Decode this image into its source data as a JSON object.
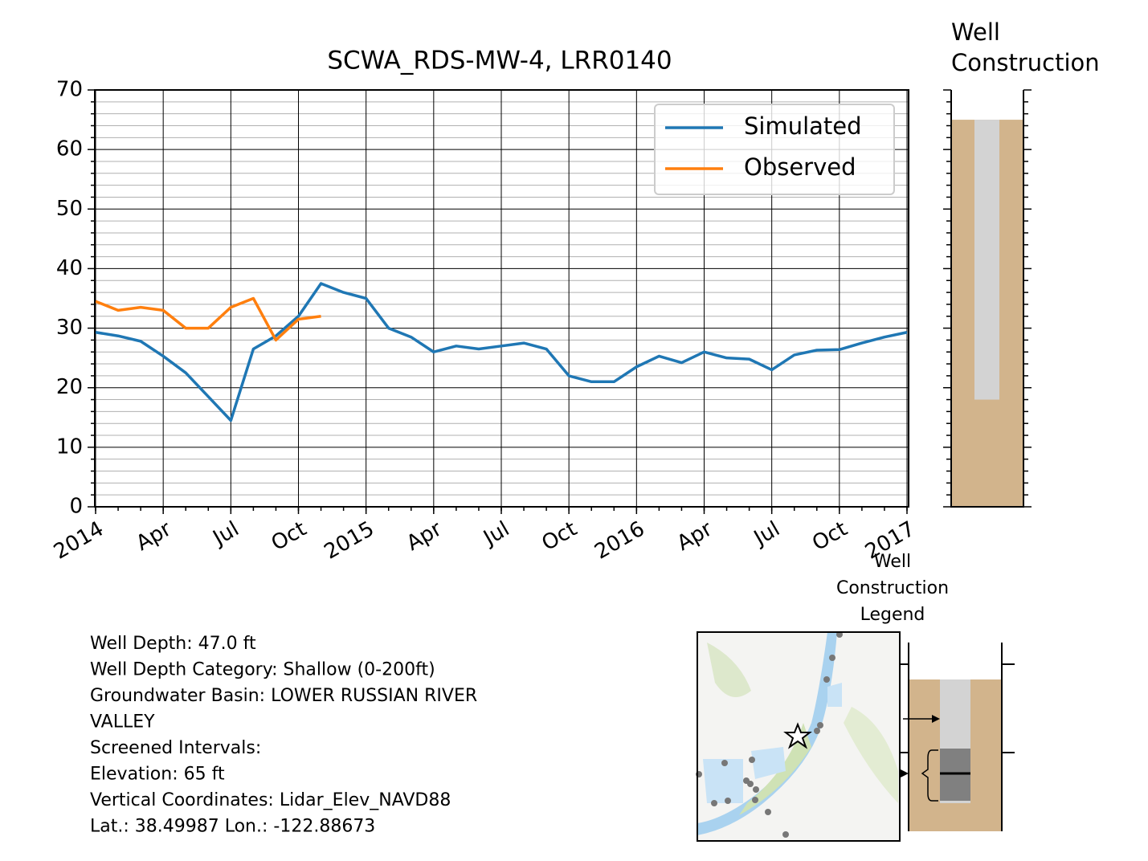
{
  "chart_data": [
    {
      "type": "line",
      "title": "SCWA_RDS-MW-4, LRR0140",
      "x": [
        "2014-01",
        "2014-02",
        "2014-03",
        "2014-04",
        "2014-05",
        "2014-06",
        "2014-07",
        "2014-08",
        "2014-09",
        "2014-10",
        "2014-11",
        "2014-12",
        "2015-01",
        "2015-02",
        "2015-03",
        "2015-04",
        "2015-05",
        "2015-06",
        "2015-07",
        "2015-08",
        "2015-09",
        "2015-10",
        "2015-11",
        "2015-12",
        "2016-01",
        "2016-02",
        "2016-03",
        "2016-04",
        "2016-05",
        "2016-06",
        "2016-07",
        "2016-08",
        "2016-09",
        "2016-10",
        "2016-11",
        "2016-12",
        "2017-01"
      ],
      "series": [
        {
          "name": "Simulated",
          "color": "#1f77b4",
          "values": [
            29.3,
            28.7,
            27.8,
            25.3,
            22.5,
            18.5,
            14.5,
            26.5,
            28.7,
            32,
            37.5,
            36,
            35,
            30,
            28.5,
            26,
            27,
            26.5,
            27,
            27.5,
            26.5,
            22,
            21,
            21,
            23.5,
            25.3,
            24.2,
            26,
            25,
            24.8,
            23,
            25.5,
            26.3,
            26.4,
            27.5,
            28.5,
            29.3
          ]
        },
        {
          "name": "Observed",
          "color": "#ff7f0e",
          "values": [
            34.5,
            33,
            33.5,
            33,
            30,
            30,
            33.5,
            35,
            28,
            31.5,
            32,
            null,
            null,
            null,
            null,
            null,
            null,
            null,
            null,
            null,
            null,
            null,
            null,
            null,
            null,
            null,
            null,
            null,
            null,
            null,
            null,
            null,
            null,
            null,
            null,
            null,
            null
          ]
        }
      ],
      "xlim": [
        "2014-01",
        "2017-01"
      ],
      "xticks": [
        {
          "value": "2014-01",
          "label": "2014"
        },
        {
          "value": "2014-04",
          "label": "Apr"
        },
        {
          "value": "2014-07",
          "label": "Jul"
        },
        {
          "value": "2014-10",
          "label": "Oct"
        },
        {
          "value": "2015-01",
          "label": "2015"
        },
        {
          "value": "2015-04",
          "label": "Apr"
        },
        {
          "value": "2015-07",
          "label": "Jul"
        },
        {
          "value": "2015-10",
          "label": "Oct"
        },
        {
          "value": "2016-01",
          "label": "2016"
        },
        {
          "value": "2016-04",
          "label": "Apr"
        },
        {
          "value": "2016-07",
          "label": "Jul"
        },
        {
          "value": "2016-10",
          "label": "Oct"
        },
        {
          "value": "2017-01",
          "label": "2017"
        }
      ],
      "ylim": [
        0,
        70
      ],
      "yticks": [
        0,
        10,
        20,
        30,
        40,
        50,
        60,
        70
      ],
      "grid": true,
      "minor_grid": true,
      "legend": "upper right"
    },
    {
      "type": "well",
      "title": "Well Construction",
      "ylim": [
        0,
        70
      ],
      "yticks": [
        0,
        10,
        20,
        30,
        40,
        50,
        60,
        70
      ],
      "elevation": 65,
      "casing_bottom": 18,
      "color": "#d2b48c",
      "casing_color": "#d3d3d3"
    }
  ],
  "info_lines": [
    "Well Depth: 47.0 ft",
    "Well Depth Category: Shallow (0-200ft)",
    "Groundwater Basin: LOWER RUSSIAN RIVER",
    "VALLEY",
    "Screened Intervals:",
    "Elevation: 65 ft",
    "Vertical Coordinates: Lidar_Elev_NAVD88",
    "Lat.: 38.49987 Lon.: -122.88673"
  ],
  "legend_diagram": {
    "title": "Well Construction Legend"
  }
}
